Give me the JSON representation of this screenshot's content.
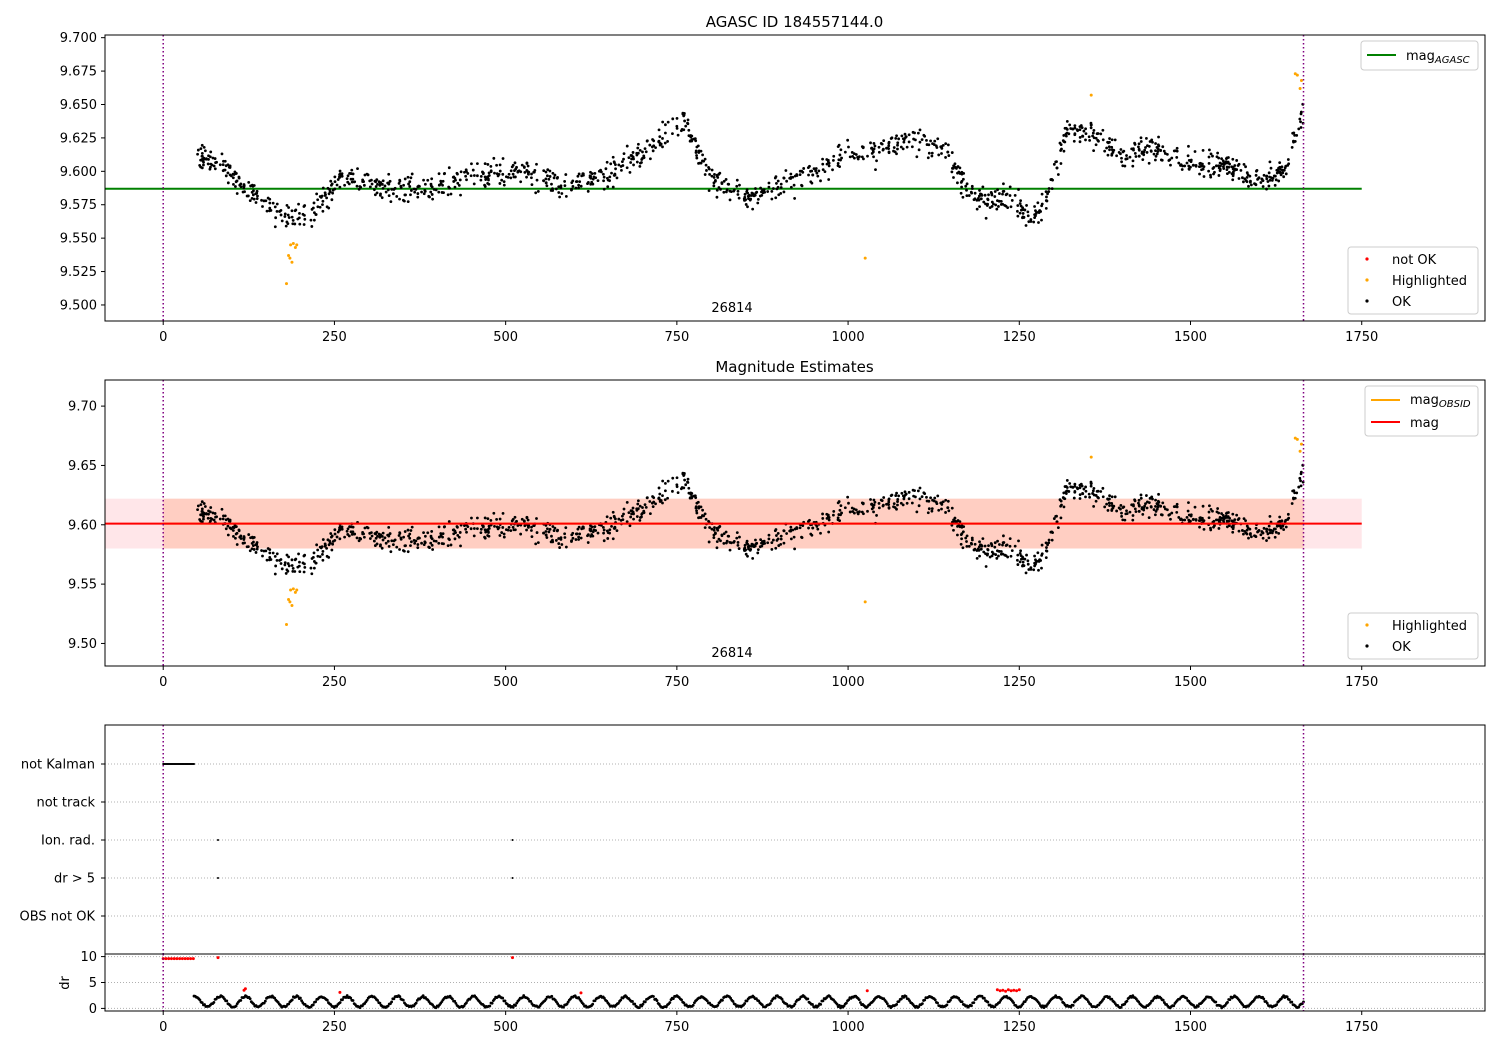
{
  "chart_data": [
    {
      "type": "scatter",
      "title": "AGASC ID 184557144.0",
      "annotation": "26814",
      "xlim": [
        -85,
        1930
      ],
      "ylim": [
        9.488,
        9.702
      ],
      "x_ticks": [
        0,
        250,
        500,
        750,
        1000,
        1250,
        1500,
        1750
      ],
      "y_ticks": [
        9.5,
        9.525,
        9.55,
        9.575,
        9.6,
        9.625,
        9.65,
        9.675,
        9.7
      ],
      "y_tick_labels": [
        "9.500",
        "9.525",
        "9.550",
        "9.575",
        "9.600",
        "9.625",
        "9.650",
        "9.675",
        "9.700"
      ],
      "obs_boundaries": [
        0,
        1665
      ],
      "lines": [
        {
          "name": "mag_AGASC",
          "label_main": "mag",
          "label_sub": "AGASC",
          "color": "#008000",
          "y": 9.587,
          "x": [
            -85,
            1750
          ]
        }
      ],
      "legend_points": [
        {
          "name": "not OK",
          "color": "#ff0000"
        },
        {
          "name": "Highlighted",
          "color": "#ffa500"
        },
        {
          "name": "OK",
          "color": "#000000"
        }
      ],
      "trend": {
        "x": [
          50,
          100,
          150,
          185,
          215,
          260,
          320,
          380,
          450,
          520,
          580,
          640,
          700,
          760,
          800,
          850,
          900,
          950,
          1000,
          1050,
          1100,
          1140,
          1170,
          1200,
          1240,
          1265,
          1290,
          1320,
          1360,
          1400,
          1450,
          1500,
          1550,
          1600,
          1640,
          1665
        ],
        "y": [
          9.613,
          9.598,
          9.575,
          9.565,
          9.568,
          9.598,
          9.588,
          9.585,
          9.598,
          9.602,
          9.588,
          9.595,
          9.615,
          9.638,
          9.595,
          9.578,
          9.592,
          9.598,
          9.612,
          9.618,
          9.622,
          9.615,
          9.59,
          9.575,
          9.582,
          9.562,
          9.58,
          9.632,
          9.628,
          9.612,
          9.618,
          9.605,
          9.605,
          9.592,
          9.603,
          9.648
        ],
        "spread": 0.011,
        "x_range": [
          50,
          1665
        ],
        "n": 1400,
        "color": "#000000"
      },
      "highlighted": [
        {
          "x": 180,
          "y": 9.516
        },
        {
          "x": 183,
          "y": 9.537
        },
        {
          "x": 185,
          "y": 9.535
        },
        {
          "x": 186,
          "y": 9.545
        },
        {
          "x": 188,
          "y": 9.532
        },
        {
          "x": 190,
          "y": 9.546
        },
        {
          "x": 193,
          "y": 9.543
        },
        {
          "x": 195,
          "y": 9.545
        },
        {
          "x": 1025,
          "y": 9.535
        },
        {
          "x": 1355,
          "y": 9.657
        },
        {
          "x": 1653,
          "y": 9.673
        },
        {
          "x": 1656,
          "y": 9.672
        },
        {
          "x": 1660,
          "y": 9.662
        },
        {
          "x": 1662,
          "y": 9.668
        }
      ],
      "xlabel": "",
      "ylabel": ""
    },
    {
      "type": "scatter",
      "title": "Magnitude Estimates",
      "annotation": "26814",
      "xlim": [
        -85,
        1930
      ],
      "ylim": [
        9.481,
        9.722
      ],
      "x_ticks": [
        0,
        250,
        500,
        750,
        1000,
        1250,
        1500,
        1750
      ],
      "y_ticks": [
        9.5,
        9.55,
        9.6,
        9.65,
        9.7
      ],
      "y_tick_labels": [
        "9.50",
        "9.55",
        "9.60",
        "9.65",
        "9.70"
      ],
      "obs_boundaries": [
        0,
        1665
      ],
      "band_outer": {
        "x": [
          -85,
          1750
        ],
        "y": [
          9.58,
          9.622
        ],
        "color": "#ffb6c1"
      },
      "band_inner": {
        "x": [
          0,
          1665
        ],
        "y": [
          9.58,
          9.622
        ],
        "color": "#ffa07a"
      },
      "lines": [
        {
          "name": "mag_OBSID",
          "label_main": "mag",
          "label_sub": "OBSID",
          "color": "#ffa500",
          "y": 9.601,
          "x": [
            0,
            1665
          ]
        },
        {
          "name": "mag",
          "label_main": "mag",
          "label_sub": "",
          "color": "#ff0000",
          "y": 9.601,
          "x": [
            -85,
            1750
          ]
        }
      ],
      "legend_points": [
        {
          "name": "Highlighted",
          "color": "#ffa500"
        },
        {
          "name": "OK",
          "color": "#000000"
        }
      ],
      "same_points_as_chart": 0,
      "xlabel": "",
      "ylabel": ""
    },
    {
      "type": "scatter",
      "title": "",
      "xlim": [
        -85,
        1930
      ],
      "categories": [
        "not Kalman",
        "not track",
        "Ion. rad.",
        "dr > 5",
        "OBS not OK"
      ],
      "obs_boundaries": [
        0,
        1665
      ],
      "flags": {
        "not Kalman": {
          "x_range": [
            0,
            45
          ],
          "n": 40
        },
        "not track": {
          "x_range": [],
          "n": 0
        },
        "Ion. rad.": {
          "x": [
            80,
            510
          ]
        },
        "dr > 5": {
          "x": [
            80,
            510
          ]
        },
        "OBS not OK": {
          "x_range": [],
          "n": 0
        }
      },
      "xlabel": "",
      "ylabel": ""
    },
    {
      "type": "scatter",
      "title": "",
      "xlim": [
        -85,
        1930
      ],
      "ylim": [
        -0.5,
        10.5
      ],
      "y_ticks": [
        0,
        5,
        10
      ],
      "x_ticks": [
        0,
        250,
        500,
        750,
        1000,
        1250,
        1500,
        1750
      ],
      "obs_boundaries": [
        0,
        1665
      ],
      "ylabel": "dr",
      "xlabel": "",
      "dr_series": {
        "x_range": [
          45,
          1665
        ],
        "n": 950,
        "low": 0.3,
        "high": 2.3,
        "color": "#000000"
      },
      "dr_red": [
        {
          "x": 0,
          "y": 9.6
        },
        {
          "x": 4,
          "y": 9.6
        },
        {
          "x": 8,
          "y": 9.6
        },
        {
          "x": 12,
          "y": 9.6
        },
        {
          "x": 16,
          "y": 9.6
        },
        {
          "x": 20,
          "y": 9.6
        },
        {
          "x": 24,
          "y": 9.6
        },
        {
          "x": 28,
          "y": 9.6
        },
        {
          "x": 32,
          "y": 9.6
        },
        {
          "x": 36,
          "y": 9.6
        },
        {
          "x": 40,
          "y": 9.6
        },
        {
          "x": 44,
          "y": 9.6
        },
        {
          "x": 80,
          "y": 9.8
        },
        {
          "x": 510,
          "y": 9.8
        },
        {
          "x": 118,
          "y": 3.5
        },
        {
          "x": 120,
          "y": 3.8
        },
        {
          "x": 258,
          "y": 3.1
        },
        {
          "x": 610,
          "y": 3.0
        },
        {
          "x": 1028,
          "y": 3.4
        },
        {
          "x": 1218,
          "y": 3.6
        },
        {
          "x": 1222,
          "y": 3.4
        },
        {
          "x": 1226,
          "y": 3.5
        },
        {
          "x": 1230,
          "y": 3.3
        },
        {
          "x": 1234,
          "y": 3.6
        },
        {
          "x": 1238,
          "y": 3.4
        },
        {
          "x": 1242,
          "y": 3.5
        },
        {
          "x": 1246,
          "y": 3.4
        },
        {
          "x": 1250,
          "y": 3.6
        }
      ]
    }
  ]
}
